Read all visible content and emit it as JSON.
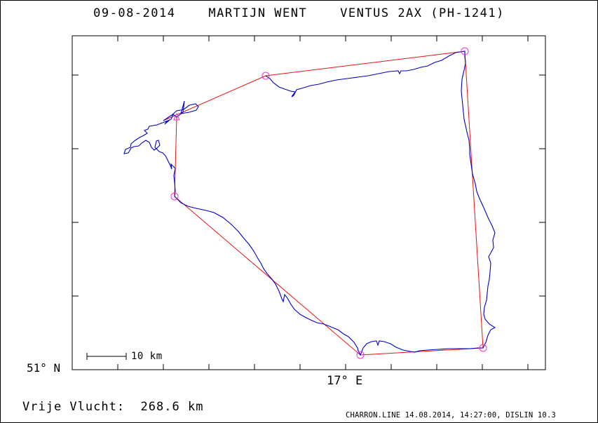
{
  "title": "09-08-2014    MARTIJN WENT    VENTUS 2AX (PH-1241)",
  "axes": {
    "lat_label": "51° N",
    "lon_label": "17° E"
  },
  "scale_bar": {
    "label": "10 km"
  },
  "distance": {
    "label": "Vrije Vlucht:",
    "value": "268.6 km"
  },
  "footer": "CHARRON.LINE 14.08.2014, 14:27:00, DISLIN 10.3",
  "colors": {
    "task_line": "#ee1111",
    "flight_track": "#0000cc",
    "turnpoint_marker": "#ee33cc",
    "frame": "#000000"
  },
  "icons": {
    "turnpoint": "circle-marker-icon",
    "start": "triangle-marker-icon"
  }
}
